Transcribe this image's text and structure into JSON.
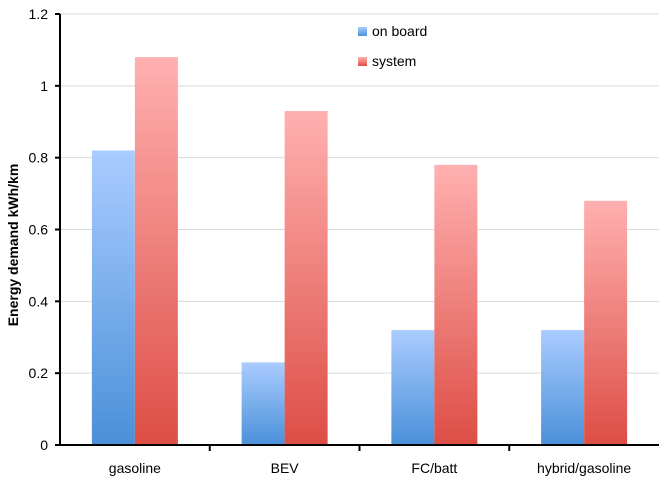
{
  "chart_data": {
    "type": "bar",
    "title": "",
    "xlabel": "",
    "ylabel": "Energy demand kWh/km",
    "categories": [
      "gasoline",
      "BEV",
      "FC/batt",
      "hybrid/gasoline"
    ],
    "series": [
      {
        "name": "on board",
        "values": [
          0.82,
          0.23,
          0.32,
          0.32
        ]
      },
      {
        "name": "system",
        "values": [
          1.08,
          0.93,
          0.78,
          0.68
        ]
      }
    ],
    "ylim": [
      0,
      1.2
    ],
    "yticks": [
      "0",
      "0.2",
      "0.4",
      "0.6",
      "0.8",
      "1",
      "1.2"
    ],
    "grid": true,
    "legend_position": "top-center",
    "colors": {
      "on_board_top": "#aaccff",
      "on_board_bottom": "#4a90d9",
      "system_top": "#ffb0b0",
      "system_bottom": "#dd4e45",
      "grid": "#d9d9d9",
      "axis": "#000000"
    }
  }
}
